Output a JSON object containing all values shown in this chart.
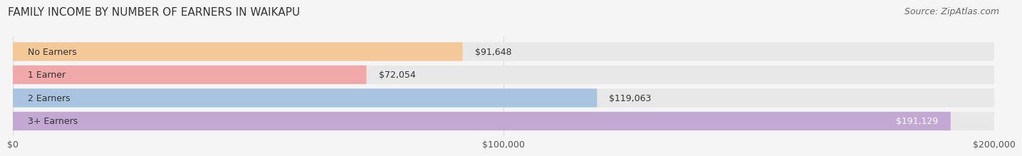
{
  "title": "FAMILY INCOME BY NUMBER OF EARNERS IN WAIKAPU",
  "source": "Source: ZipAtlas.com",
  "categories": [
    "No Earners",
    "1 Earner",
    "2 Earners",
    "3+ Earners"
  ],
  "values": [
    91648,
    72054,
    119063,
    191129
  ],
  "bar_colors": [
    "#f5c897",
    "#f0a8a8",
    "#a8c4e0",
    "#c4a8d4"
  ],
  "bar_bg_color": "#e8e8e8",
  "label_colors": [
    "#333333",
    "#333333",
    "#333333",
    "#ffffff"
  ],
  "value_labels": [
    "$91,648",
    "$72,054",
    "$119,063",
    "$191,129"
  ],
  "xlim": [
    0,
    200000
  ],
  "xticks": [
    0,
    100000,
    200000
  ],
  "xtick_labels": [
    "$0",
    "$100,000",
    "$200,000"
  ],
  "background_color": "#f5f5f5",
  "title_fontsize": 11,
  "source_fontsize": 9,
  "bar_label_fontsize": 9,
  "value_fontsize": 9,
  "tick_fontsize": 9
}
